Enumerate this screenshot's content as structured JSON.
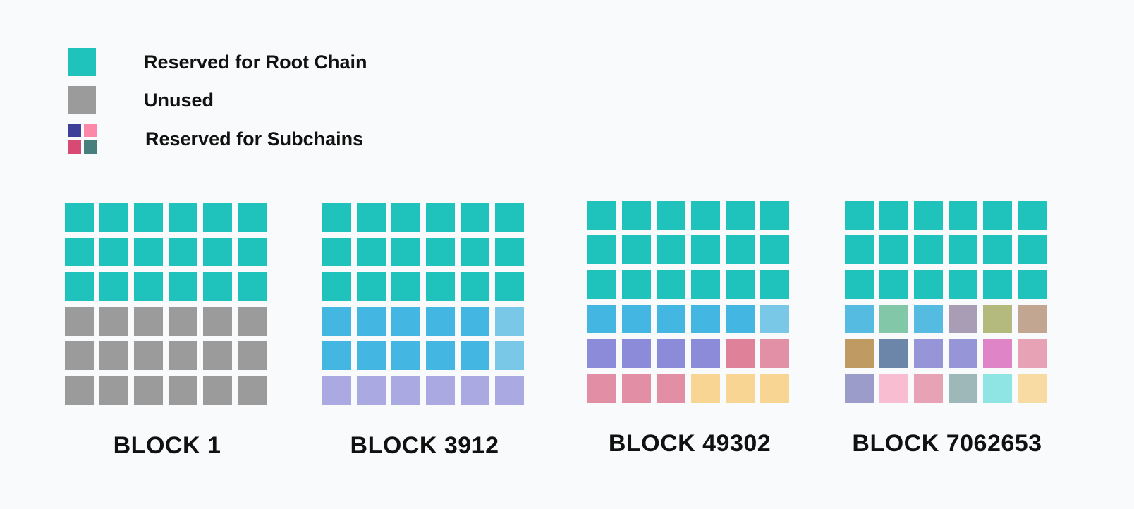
{
  "legend": {
    "items": [
      {
        "key": "root",
        "label": "Reserved for Root Chain",
        "color": "#1fc3bc"
      },
      {
        "key": "unused",
        "label": "Unused",
        "color": "#9b9b9b"
      },
      {
        "key": "subchains",
        "label": "Reserved for Subchains",
        "colors": [
          "#3d3f99",
          "#fb88a8",
          "#d84a73",
          "#467f7c"
        ]
      }
    ]
  },
  "blocks": [
    {
      "title": "BLOCK 1",
      "rows": [
        [
          "#1fc3bc",
          "#1fc3bc",
          "#1fc3bc",
          "#1fc3bc",
          "#1fc3bc",
          "#1fc3bc"
        ],
        [
          "#1fc3bc",
          "#1fc3bc",
          "#1fc3bc",
          "#1fc3bc",
          "#1fc3bc",
          "#1fc3bc"
        ],
        [
          "#1fc3bc",
          "#1fc3bc",
          "#1fc3bc",
          "#1fc3bc",
          "#1fc3bc",
          "#1fc3bc"
        ],
        [
          "#9b9b9b",
          "#9b9b9b",
          "#9b9b9b",
          "#9b9b9b",
          "#9b9b9b",
          "#9b9b9b"
        ],
        [
          "#9b9b9b",
          "#9b9b9b",
          "#9b9b9b",
          "#9b9b9b",
          "#9b9b9b",
          "#9b9b9b"
        ],
        [
          "#9b9b9b",
          "#9b9b9b",
          "#9b9b9b",
          "#9b9b9b",
          "#9b9b9b",
          "#9b9b9b"
        ]
      ]
    },
    {
      "title": "BLOCK 3912",
      "rows": [
        [
          "#1fc3bc",
          "#1fc3bc",
          "#1fc3bc",
          "#1fc3bc",
          "#1fc3bc",
          "#1fc3bc"
        ],
        [
          "#1fc3bc",
          "#1fc3bc",
          "#1fc3bc",
          "#1fc3bc",
          "#1fc3bc",
          "#1fc3bc"
        ],
        [
          "#1fc3bc",
          "#1fc3bc",
          "#1fc3bc",
          "#1fc3bc",
          "#1fc3bc",
          "#1fc3bc"
        ],
        [
          "#44b6e2",
          "#44b6e2",
          "#44b6e2",
          "#44b6e2",
          "#44b6e2",
          "#7ac8e8"
        ],
        [
          "#44b6e2",
          "#44b6e2",
          "#44b6e2",
          "#44b6e2",
          "#44b6e2",
          "#7ac8e8"
        ],
        [
          "#aaa9e2",
          "#aaa9e2",
          "#aaa9e2",
          "#aaa9e2",
          "#aaa9e2",
          "#aaa9e2"
        ]
      ]
    },
    {
      "title": "BLOCK 49302",
      "rows": [
        [
          "#1fc3bc",
          "#1fc3bc",
          "#1fc3bc",
          "#1fc3bc",
          "#1fc3bc",
          "#1fc3bc"
        ],
        [
          "#1fc3bc",
          "#1fc3bc",
          "#1fc3bc",
          "#1fc3bc",
          "#1fc3bc",
          "#1fc3bc"
        ],
        [
          "#1fc3bc",
          "#1fc3bc",
          "#1fc3bc",
          "#1fc3bc",
          "#1fc3bc",
          "#1fc3bc"
        ],
        [
          "#44b6e2",
          "#44b6e2",
          "#44b6e2",
          "#44b6e2",
          "#44b6e2",
          "#7ac8e8"
        ],
        [
          "#8c8bd9",
          "#8c8bd9",
          "#8c8bd9",
          "#8c8bd9",
          "#de8199",
          "#e290a6"
        ],
        [
          "#e28ea4",
          "#e28ea4",
          "#e28ea4",
          "#f8d592",
          "#f8d592",
          "#f8d592"
        ]
      ]
    },
    {
      "title": "BLOCK 7062653",
      "rows": [
        [
          "#1fc3bc",
          "#1fc3bc",
          "#1fc3bc",
          "#1fc3bc",
          "#1fc3bc",
          "#1fc3bc"
        ],
        [
          "#1fc3bc",
          "#1fc3bc",
          "#1fc3bc",
          "#1fc3bc",
          "#1fc3bc",
          "#1fc3bc"
        ],
        [
          "#1fc3bc",
          "#1fc3bc",
          "#1fc3bc",
          "#1fc3bc",
          "#1fc3bc",
          "#1fc3bc"
        ],
        [
          "#55bbe0",
          "#82c7a8",
          "#55bbe0",
          "#a89db5",
          "#b4b97e",
          "#c2a692"
        ],
        [
          "#c09a63",
          "#6b86a8",
          "#9595d8",
          "#9595d8",
          "#df84c6",
          "#e7a2b6"
        ],
        [
          "#9c9cca",
          "#f9bdd1",
          "#e8a2b5",
          "#9eb7b8",
          "#8fe4e4",
          "#f8dba2"
        ]
      ]
    }
  ]
}
